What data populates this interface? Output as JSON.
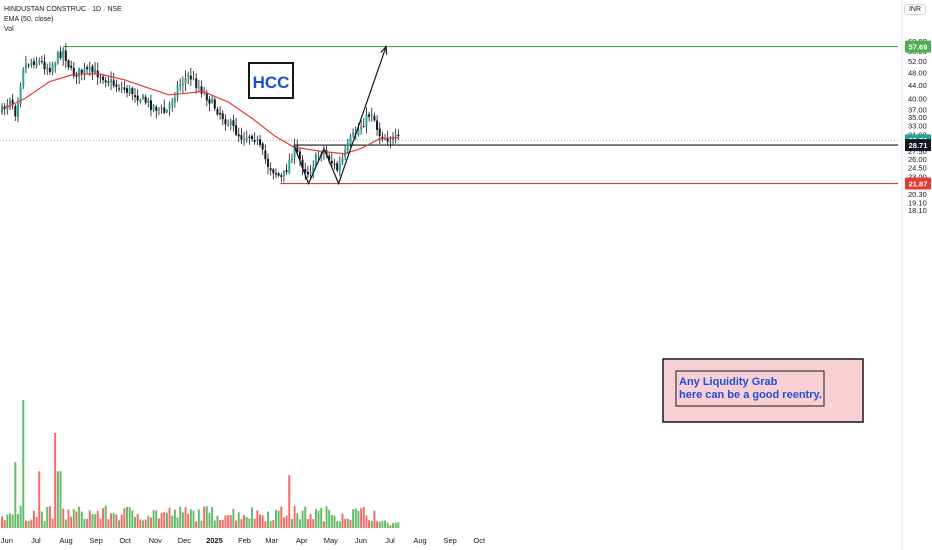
{
  "header": {
    "title": "HINDUSTAN CONSTRUC · 1D · NSE",
    "indicator": "EMA (50, close)",
    "volume_label": "Vol",
    "currency": "INR"
  },
  "colors": {
    "up": "#26a69a",
    "down": "#ef5350",
    "candle": "#131722",
    "ema": "#e53935",
    "vol_up": "#4caf50",
    "vol_down": "#ef5350",
    "green_line": "#4caf50",
    "red_line": "#e53935",
    "annotation_bg": "#f8d0d4",
    "annotation_text": "#1e4fd8",
    "ticker_text": "#1e4fd8"
  },
  "annotations": {
    "ticker_box": "HCC",
    "note": "Any Liquidity Grab here can be a good reentry."
  },
  "chart_data": {
    "type": "candlestick",
    "title": "HINDUSTAN CONSTRUC · 1D · NSE",
    "y_axis": {
      "scale": "log",
      "ticks": [
        "60.00",
        "56.00",
        "52.00",
        "48.00",
        "44.00",
        "40.00",
        "37.00",
        "35.00",
        "33.00",
        "31.00",
        "27.50",
        "26.00",
        "24.50",
        "23.00",
        "20.30",
        "19.10",
        "18.10"
      ]
    },
    "x_axis": {
      "ticks": [
        "Jun",
        "Jul",
        "Aug",
        "Sep",
        "Oct",
        "Nov",
        "Dec",
        "2025",
        "Feb",
        "Mar",
        "Apr",
        "May",
        "Jun",
        "Jul",
        "Aug",
        "Sep",
        "Oct"
      ]
    },
    "price_labels": [
      {
        "value": "57.69",
        "role": "resistance",
        "color": "#4caf50"
      },
      {
        "value": "29.72",
        "role": "last",
        "color": "#26a69a"
      },
      {
        "value": "28.71",
        "role": "breakout-level",
        "color": "#131722"
      },
      {
        "value": "21.87",
        "role": "support",
        "color": "#e53935"
      }
    ],
    "price_path": [
      {
        "date": "2024-05-27",
        "price": 36.5
      },
      {
        "date": "2024-06-05",
        "price": 40.5
      },
      {
        "date": "2024-06-10",
        "price": 36.0
      },
      {
        "date": "2024-06-18",
        "price": 50.5
      },
      {
        "date": "2024-07-01",
        "price": 52.5
      },
      {
        "date": "2024-07-15",
        "price": 49.5
      },
      {
        "date": "2024-07-29",
        "price": 56.5
      },
      {
        "date": "2024-08-07",
        "price": 47.5
      },
      {
        "date": "2024-08-20",
        "price": 48.5
      },
      {
        "date": "2024-09-05",
        "price": 47.5
      },
      {
        "date": "2024-09-20",
        "price": 44.0
      },
      {
        "date": "2024-10-10",
        "price": 41.5
      },
      {
        "date": "2024-10-25",
        "price": 38.5
      },
      {
        "date": "2024-11-12",
        "price": 36.0
      },
      {
        "date": "2024-11-25",
        "price": 44.0
      },
      {
        "date": "2024-12-06",
        "price": 47.0
      },
      {
        "date": "2024-12-20",
        "price": 42.0
      },
      {
        "date": "2025-01-10",
        "price": 35.0
      },
      {
        "date": "2025-01-28",
        "price": 30.5
      },
      {
        "date": "2025-02-10",
        "price": 31.0
      },
      {
        "date": "2025-02-25",
        "price": 25.0
      },
      {
        "date": "2025-03-12",
        "price": 22.5
      },
      {
        "date": "2025-03-24",
        "price": 28.0
      },
      {
        "date": "2025-04-07",
        "price": 23.5
      },
      {
        "date": "2025-04-22",
        "price": 28.0
      },
      {
        "date": "2025-05-08",
        "price": 24.0
      },
      {
        "date": "2025-05-22",
        "price": 30.0
      },
      {
        "date": "2025-06-12",
        "price": 36.5
      },
      {
        "date": "2025-06-20",
        "price": 31.0
      },
      {
        "date": "2025-07-01",
        "price": 30.0
      },
      {
        "date": "2025-07-10",
        "price": 29.7
      }
    ],
    "ema_path": [
      {
        "date": "2024-05-27",
        "price": 37.0
      },
      {
        "date": "2024-06-20",
        "price": 40.0
      },
      {
        "date": "2024-07-15",
        "price": 45.0
      },
      {
        "date": "2024-08-10",
        "price": 47.5
      },
      {
        "date": "2024-09-05",
        "price": 47.5
      },
      {
        "date": "2024-10-01",
        "price": 45.5
      },
      {
        "date": "2024-10-25",
        "price": 43.0
      },
      {
        "date": "2024-11-15",
        "price": 41.0
      },
      {
        "date": "2024-12-05",
        "price": 41.5
      },
      {
        "date": "2024-12-20",
        "price": 42.0
      },
      {
        "date": "2025-01-15",
        "price": 39.0
      },
      {
        "date": "2025-02-10",
        "price": 34.5
      },
      {
        "date": "2025-03-05",
        "price": 30.5
      },
      {
        "date": "2025-03-24",
        "price": 28.3
      },
      {
        "date": "2025-04-20",
        "price": 27.5
      },
      {
        "date": "2025-05-15",
        "price": 27.0
      },
      {
        "date": "2025-06-01",
        "price": 28.0
      },
      {
        "date": "2025-06-20",
        "price": 30.0
      },
      {
        "date": "2025-07-10",
        "price": 30.3
      }
    ],
    "volume_peaks": [
      {
        "date": "2024-06-17",
        "level": 0.97
      },
      {
        "date": "2024-07-22",
        "level": 0.72
      },
      {
        "date": "2024-06-10",
        "level": 0.5
      },
      {
        "date": "2024-07-05",
        "level": 0.43
      },
      {
        "date": "2024-07-25",
        "level": 0.43
      },
      {
        "date": "2025-03-19",
        "level": 0.4
      }
    ],
    "drawings": {
      "w_pattern": [
        {
          "date": "2025-03-24",
          "price": 28.7
        },
        {
          "date": "2025-04-08",
          "price": 21.87
        },
        {
          "date": "2025-04-24",
          "price": 28.0
        },
        {
          "date": "2025-05-09",
          "price": 21.87
        },
        {
          "date": "2025-06-27",
          "price": 57.69
        }
      ],
      "horizontals": [
        {
          "price": 57.69,
          "from": "2024-07-29",
          "label": "57.69"
        },
        {
          "price": 28.71,
          "from": "2025-03-24",
          "label": "28.71"
        },
        {
          "price": 21.87,
          "from": "2025-03-10",
          "label": "21.87"
        }
      ]
    }
  }
}
